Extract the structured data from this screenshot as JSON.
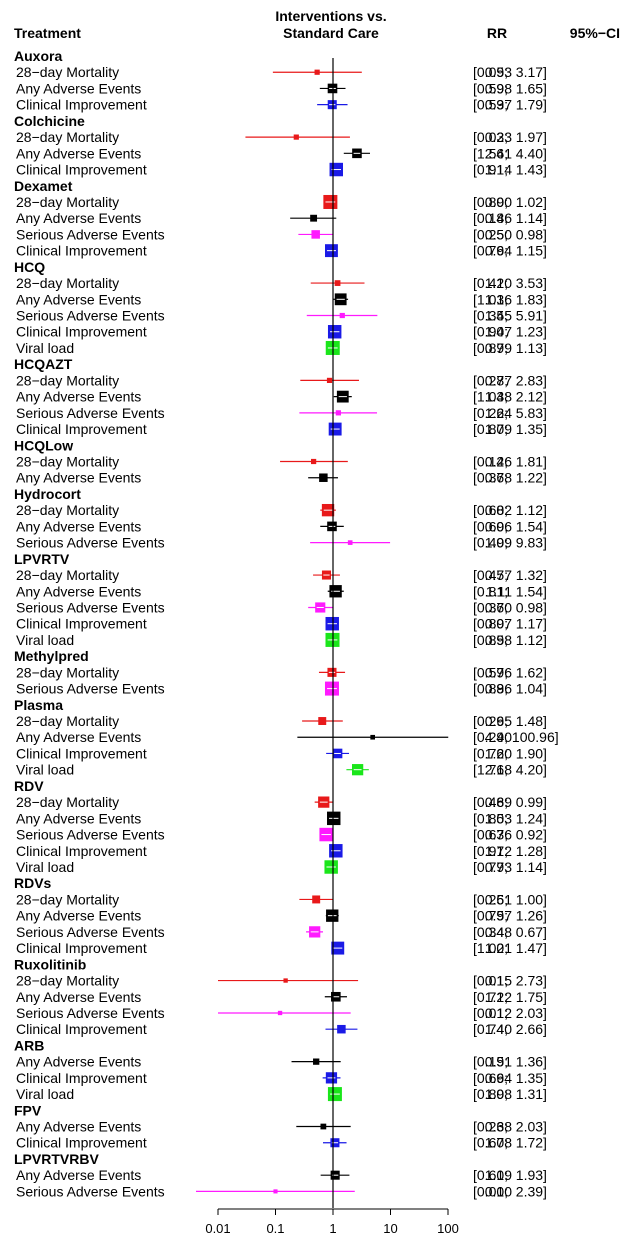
{
  "chart_data": {
    "type": "forest",
    "headers": {
      "treatment": "Treatment",
      "interventions_line1": "Interventions vs.",
      "interventions_line2": "Standard Care",
      "rr": "RR",
      "ci": "95%−CI"
    },
    "x_scale": "log",
    "xlim": [
      0.01,
      100
    ],
    "x_ticks": [
      "0.01",
      "0.1",
      "1",
      "10",
      "100"
    ],
    "x_tick_values": [
      0.01,
      0.1,
      1,
      10,
      100
    ],
    "reference_line": 1,
    "outcome_colors": {
      "28−day Mortality": "#e8191a",
      "Any Adverse Events": "#000000",
      "Clinical Improvement": "#1a1ae6",
      "Serious Adverse Events": "#ff1aff",
      "Viral load": "#1ae61a"
    },
    "groups": [
      {
        "name": "Auxora",
        "rows": [
          {
            "outcome": "28−day Mortality",
            "rr": 0.53,
            "lo": 0.09,
            "hi": 3.17,
            "rr_text": "0.53",
            "ci_text": "[0.09;  3.17]",
            "weight": 0.2
          },
          {
            "outcome": "Any Adverse Events",
            "rr": 0.98,
            "lo": 0.59,
            "hi": 1.65,
            "rr_text": "0.98",
            "ci_text": "[0.59;  1.65]",
            "weight": 0.6
          },
          {
            "outcome": "Clinical Improvement",
            "rr": 0.97,
            "lo": 0.53,
            "hi": 1.79,
            "rr_text": "0.97",
            "ci_text": "[0.53;  1.79]",
            "weight": 0.55
          }
        ]
      },
      {
        "name": "Colchicine",
        "rows": [
          {
            "outcome": "28−day Mortality",
            "rr": 0.23,
            "lo": 0.03,
            "hi": 1.97,
            "rr_text": "0.23",
            "ci_text": "[0.03;  1.97]",
            "weight": 0.2
          },
          {
            "outcome": "Any Adverse Events",
            "rr": 2.61,
            "lo": 1.54,
            "hi": 4.4,
            "rr_text": "2.61",
            "ci_text": "[1.54;  4.40]",
            "weight": 0.6
          },
          {
            "outcome": "Clinical Improvement",
            "rr": 1.14,
            "lo": 0.91,
            "hi": 1.43,
            "rr_text": "1.14",
            "ci_text": "[0.91;  1.43]",
            "weight": 0.95
          }
        ]
      },
      {
        "name": "Dexamet",
        "rows": [
          {
            "outcome": "28−day Mortality",
            "rr": 0.9,
            "lo": 0.8,
            "hi": 1.02,
            "rr_text": "0.90",
            "ci_text": "[0.80;  1.02]",
            "weight": 1.0
          },
          {
            "outcome": "Any Adverse Events",
            "rr": 0.46,
            "lo": 0.18,
            "hi": 1.14,
            "rr_text": "0.46",
            "ci_text": "[0.18;  1.14]",
            "weight": 0.35
          },
          {
            "outcome": "Serious Adverse Events",
            "rr": 0.5,
            "lo": 0.25,
            "hi": 0.98,
            "rr_text": "0.50",
            "ci_text": "[0.25;  0.98]",
            "weight": 0.5
          },
          {
            "outcome": "Clinical Improvement",
            "rr": 0.94,
            "lo": 0.76,
            "hi": 1.15,
            "rr_text": "0.94",
            "ci_text": "[0.76;  1.15]",
            "weight": 0.9
          }
        ]
      },
      {
        "name": "HCQ",
        "rows": [
          {
            "outcome": "28−day Mortality",
            "rr": 1.2,
            "lo": 0.41,
            "hi": 3.53,
            "rr_text": "1.20",
            "ci_text": "[0.41;  3.53]",
            "weight": 0.25
          },
          {
            "outcome": "Any Adverse Events",
            "rr": 1.36,
            "lo": 1.01,
            "hi": 1.83,
            "rr_text": "1.36",
            "ci_text": "[1.01;  1.83]",
            "weight": 0.8
          },
          {
            "outcome": "Serious Adverse Events",
            "rr": 1.45,
            "lo": 0.35,
            "hi": 5.91,
            "rr_text": "1.45",
            "ci_text": "[0.35;  5.91]",
            "weight": 0.2
          },
          {
            "outcome": "Clinical Improvement",
            "rr": 1.07,
            "lo": 0.94,
            "hi": 1.23,
            "rr_text": "1.07",
            "ci_text": "[0.94;  1.23]",
            "weight": 0.95
          },
          {
            "outcome": "Viral load",
            "rr": 0.99,
            "lo": 0.87,
            "hi": 1.13,
            "rr_text": "0.99",
            "ci_text": "[0.87;  1.13]",
            "weight": 1.0
          }
        ]
      },
      {
        "name": "HCQAZT",
        "rows": [
          {
            "outcome": "28−day Mortality",
            "rr": 0.87,
            "lo": 0.27,
            "hi": 2.83,
            "rr_text": "0.87",
            "ci_text": "[0.27;  2.83]",
            "weight": 0.2
          },
          {
            "outcome": "Any Adverse Events",
            "rr": 1.48,
            "lo": 1.03,
            "hi": 2.12,
            "rr_text": "1.48",
            "ci_text": "[1.03;  2.12]",
            "weight": 0.8
          },
          {
            "outcome": "Serious Adverse Events",
            "rr": 1.24,
            "lo": 0.26,
            "hi": 5.83,
            "rr_text": "1.24",
            "ci_text": "[0.26;  5.83]",
            "weight": 0.2
          },
          {
            "outcome": "Clinical Improvement",
            "rr": 1.09,
            "lo": 0.87,
            "hi": 1.35,
            "rr_text": "1.09",
            "ci_text": "[0.87;  1.35]",
            "weight": 0.9
          }
        ]
      },
      {
        "name": "HCQLow",
        "rows": [
          {
            "outcome": "28−day Mortality",
            "rr": 0.46,
            "lo": 0.12,
            "hi": 1.81,
            "rr_text": "0.46",
            "ci_text": "[0.12;  1.81]",
            "weight": 0.2
          },
          {
            "outcome": "Any Adverse Events",
            "rr": 0.68,
            "lo": 0.37,
            "hi": 1.22,
            "rr_text": "0.68",
            "ci_text": "[0.37;  1.22]",
            "weight": 0.5
          }
        ]
      },
      {
        "name": "Hydrocort",
        "rows": [
          {
            "outcome": "28−day Mortality",
            "rr": 0.82,
            "lo": 0.6,
            "hi": 1.12,
            "rr_text": "0.82",
            "ci_text": "[0.60;  1.12]",
            "weight": 0.85
          },
          {
            "outcome": "Any Adverse Events",
            "rr": 0.96,
            "lo": 0.6,
            "hi": 1.54,
            "rr_text": "0.96",
            "ci_text": "[0.60;  1.54]",
            "weight": 0.6
          },
          {
            "outcome": "Serious Adverse Events",
            "rr": 1.99,
            "lo": 0.4,
            "hi": 9.83,
            "rr_text": "1.99",
            "ci_text": "[0.40;  9.83]",
            "weight": 0.15
          }
        ]
      },
      {
        "name": "LPVRTV",
        "rows": [
          {
            "outcome": "28−day Mortality",
            "rr": 0.77,
            "lo": 0.45,
            "hi": 1.32,
            "rr_text": "0.77",
            "ci_text": "[0.45;  1.32]",
            "weight": 0.55
          },
          {
            "outcome": "Any Adverse Events",
            "rr": 1.11,
            "lo": 0.81,
            "hi": 1.54,
            "rr_text": "1.11",
            "ci_text": "[0.81;  1.54]",
            "weight": 0.85
          },
          {
            "outcome": "Serious Adverse Events",
            "rr": 0.6,
            "lo": 0.37,
            "hi": 0.98,
            "rr_text": "0.60",
            "ci_text": "[0.37;  0.98]",
            "weight": 0.65
          },
          {
            "outcome": "Clinical Improvement",
            "rr": 0.97,
            "lo": 0.8,
            "hi": 1.17,
            "rr_text": "0.97",
            "ci_text": "[0.80;  1.17]",
            "weight": 0.95
          },
          {
            "outcome": "Viral load",
            "rr": 0.98,
            "lo": 0.85,
            "hi": 1.12,
            "rr_text": "0.98",
            "ci_text": "[0.85;  1.12]",
            "weight": 1.0
          }
        ]
      },
      {
        "name": "Methylpred",
        "rows": [
          {
            "outcome": "28−day Mortality",
            "rr": 0.96,
            "lo": 0.57,
            "hi": 1.62,
            "rr_text": "0.96",
            "ci_text": "[0.57;  1.62]",
            "weight": 0.55
          },
          {
            "outcome": "Serious Adverse Events",
            "rr": 0.96,
            "lo": 0.88,
            "hi": 1.04,
            "rr_text": "0.96",
            "ci_text": "[0.88;  1.04]",
            "weight": 1.0
          }
        ]
      },
      {
        "name": "Plasma",
        "rows": [
          {
            "outcome": "28−day Mortality",
            "rr": 0.65,
            "lo": 0.29,
            "hi": 1.48,
            "rr_text": "0.65",
            "ci_text": "[0.29;  1.48]",
            "weight": 0.45
          },
          {
            "outcome": "Any Adverse Events",
            "rr": 4.9,
            "lo": 0.24,
            "hi": 100.96,
            "rr_text": "4.90",
            "ci_text": "[0.24; 100.96]",
            "weight": 0.15
          },
          {
            "outcome": "Clinical Improvement",
            "rr": 1.2,
            "lo": 0.76,
            "hi": 1.9,
            "rr_text": "1.20",
            "ci_text": "[0.76;  1.90]",
            "weight": 0.6
          },
          {
            "outcome": "Viral load",
            "rr": 2.68,
            "lo": 1.71,
            "hi": 4.2,
            "rr_text": "2.68",
            "ci_text": "[1.71;  4.20]",
            "weight": 0.75
          }
        ]
      },
      {
        "name": "RDV",
        "rows": [
          {
            "outcome": "28−day Mortality",
            "rr": 0.69,
            "lo": 0.48,
            "hi": 0.99,
            "rr_text": "0.69",
            "ci_text": "[0.48;  0.99]",
            "weight": 0.75
          },
          {
            "outcome": "Any Adverse Events",
            "rr": 1.03,
            "lo": 0.85,
            "hi": 1.24,
            "rr_text": "1.03",
            "ci_text": "[0.85;  1.24]",
            "weight": 0.95
          },
          {
            "outcome": "Serious Adverse Events",
            "rr": 0.76,
            "lo": 0.63,
            "hi": 0.92,
            "rr_text": "0.76",
            "ci_text": "[0.63;  0.92]",
            "weight": 0.95
          },
          {
            "outcome": "Clinical Improvement",
            "rr": 1.12,
            "lo": 0.97,
            "hi": 1.28,
            "rr_text": "1.12",
            "ci_text": "[0.97;  1.28]",
            "weight": 0.95
          },
          {
            "outcome": "Viral load",
            "rr": 0.93,
            "lo": 0.77,
            "hi": 1.14,
            "rr_text": "0.93",
            "ci_text": "[0.77;  1.14]",
            "weight": 0.95
          }
        ]
      },
      {
        "name": "RDVs",
        "rows": [
          {
            "outcome": "28−day Mortality",
            "rr": 0.51,
            "lo": 0.26,
            "hi": 1.0,
            "rr_text": "0.51",
            "ci_text": "[0.26;  1.00]",
            "weight": 0.45
          },
          {
            "outcome": "Any Adverse Events",
            "rr": 0.97,
            "lo": 0.75,
            "hi": 1.26,
            "rr_text": "0.97",
            "ci_text": "[0.75;  1.26]",
            "weight": 0.85
          },
          {
            "outcome": "Serious Adverse Events",
            "rr": 0.48,
            "lo": 0.34,
            "hi": 0.67,
            "rr_text": "0.48",
            "ci_text": "[0.34;  0.67]",
            "weight": 0.75
          },
          {
            "outcome": "Clinical Improvement",
            "rr": 1.21,
            "lo": 1.0,
            "hi": 1.47,
            "rr_text": "1.21",
            "ci_text": "[1.00;  1.47]",
            "weight": 0.9
          }
        ]
      },
      {
        "name": "Ruxolitinib",
        "rows": [
          {
            "outcome": "28−day Mortality",
            "rr": 0.15,
            "lo": 0.01,
            "hi": 2.73,
            "rr_text": "0.15",
            "ci_text": "[0.01;  2.73]",
            "weight": 0.12
          },
          {
            "outcome": "Any Adverse Events",
            "rr": 1.12,
            "lo": 0.72,
            "hi": 1.75,
            "rr_text": "1.12",
            "ci_text": "[0.72;  1.75]",
            "weight": 0.6
          },
          {
            "outcome": "Serious Adverse Events",
            "rr": 0.12,
            "lo": 0.01,
            "hi": 2.03,
            "rr_text": "0.12",
            "ci_text": "[0.01;  2.03]",
            "weight": 0.12
          },
          {
            "outcome": "Clinical Improvement",
            "rr": 1.4,
            "lo": 0.74,
            "hi": 2.66,
            "rr_text": "1.40",
            "ci_text": "[0.74;  2.66]",
            "weight": 0.5
          }
        ]
      },
      {
        "name": "ARB",
        "rows": [
          {
            "outcome": "Any Adverse Events",
            "rr": 0.51,
            "lo": 0.19,
            "hi": 1.36,
            "rr_text": "0.51",
            "ci_text": "[0.19;  1.36]",
            "weight": 0.3
          },
          {
            "outcome": "Clinical Improvement",
            "rr": 0.94,
            "lo": 0.66,
            "hi": 1.35,
            "rr_text": "0.94",
            "ci_text": "[0.66;  1.35]",
            "weight": 0.75
          },
          {
            "outcome": "Viral load",
            "rr": 1.08,
            "lo": 0.89,
            "hi": 1.31,
            "rr_text": "1.08",
            "ci_text": "[0.89;  1.31]",
            "weight": 1.0
          }
        ]
      },
      {
        "name": "FPV",
        "rows": [
          {
            "outcome": "Any Adverse Events",
            "rr": 0.68,
            "lo": 0.23,
            "hi": 2.03,
            "rr_text": "0.68",
            "ci_text": "[0.23;  2.03]",
            "weight": 0.25
          },
          {
            "outcome": "Clinical Improvement",
            "rr": 1.08,
            "lo": 0.67,
            "hi": 1.72,
            "rr_text": "1.08",
            "ci_text": "[0.67;  1.72]",
            "weight": 0.55
          }
        ]
      },
      {
        "name": "LPVRTVRBV",
        "rows": [
          {
            "outcome": "Any Adverse Events",
            "rr": 1.09,
            "lo": 0.61,
            "hi": 1.93,
            "rr_text": "1.09",
            "ci_text": "[0.61;  1.93]",
            "weight": 0.55
          },
          {
            "outcome": "Serious Adverse Events",
            "rr": 0.1,
            "lo": 0.0,
            "hi": 2.39,
            "rr_text": "0.10",
            "ci_text": "[0.00;  2.39]",
            "weight": 0.1
          }
        ]
      }
    ]
  }
}
